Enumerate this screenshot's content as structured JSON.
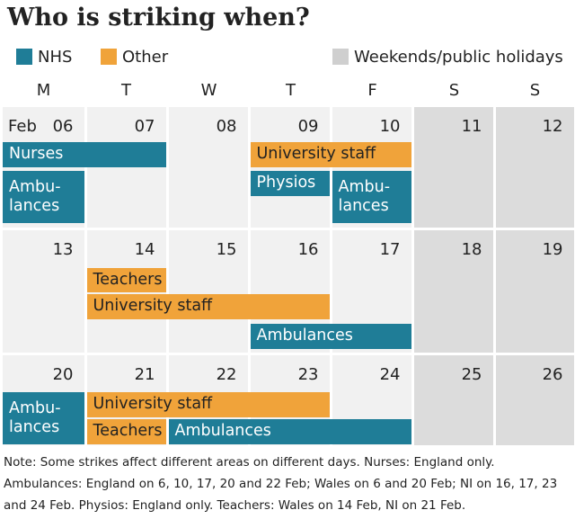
{
  "title": "Who is striking when?",
  "legend": [
    {
      "label": "NHS",
      "color": "#1f7d97"
    },
    {
      "label": "Other",
      "color": "#f0a33a"
    },
    {
      "label": "Weekends/public holidays",
      "color": "#cfcfcf"
    }
  ],
  "days": [
    "M",
    "T",
    "W",
    "T",
    "F",
    "S",
    "S"
  ],
  "month_label": "Feb",
  "colors": {
    "nhs": "#1f7d97",
    "other": "#f0a33a",
    "weekend_bg": "#dcdcdc",
    "weekday_bg": "#f1f1f1",
    "gridline": "#ffffff"
  },
  "chart_data": {
    "type": "table",
    "weeks": [
      {
        "dates": [
          "06",
          "07",
          "08",
          "09",
          "10",
          "11",
          "12"
        ]
      },
      {
        "dates": [
          "13",
          "14",
          "15",
          "16",
          "17",
          "18",
          "19"
        ]
      },
      {
        "dates": [
          "20",
          "21",
          "22",
          "23",
          "24",
          "25",
          "26"
        ]
      }
    ],
    "strikes": [
      {
        "label": "Nurses",
        "group": "NHS",
        "week": 1,
        "start_day": 1,
        "end_day": 2
      },
      {
        "label": "Ambu-\nlances",
        "group": "NHS",
        "week": 1,
        "start_day": 1,
        "end_day": 1
      },
      {
        "label": "University staff",
        "group": "Other",
        "week": 1,
        "start_day": 4,
        "end_day": 5
      },
      {
        "label": "Physios",
        "group": "NHS",
        "week": 1,
        "start_day": 4,
        "end_day": 4
      },
      {
        "label": "Ambu-\nlances",
        "group": "NHS",
        "week": 1,
        "start_day": 5,
        "end_day": 5
      },
      {
        "label": "Teachers",
        "group": "Other",
        "week": 2,
        "start_day": 2,
        "end_day": 2
      },
      {
        "label": "University staff",
        "group": "Other",
        "week": 2,
        "start_day": 2,
        "end_day": 4
      },
      {
        "label": "Ambulances",
        "group": "NHS",
        "week": 2,
        "start_day": 4,
        "end_day": 5
      },
      {
        "label": "Ambu-\nlances",
        "group": "NHS",
        "week": 3,
        "start_day": 1,
        "end_day": 1
      },
      {
        "label": "University staff",
        "group": "Other",
        "week": 3,
        "start_day": 2,
        "end_day": 4
      },
      {
        "label": "Teachers",
        "group": "Other",
        "week": 3,
        "start_day": 2,
        "end_day": 2
      },
      {
        "label": "Ambulances",
        "group": "NHS",
        "week": 3,
        "start_day": 3,
        "end_day": 5
      }
    ]
  },
  "note": "Note: Some strikes affect different areas on different days. Nurses: England only. Ambulances: England on 6, 10, 17, 20 and 22 Feb; Wales on 6 and 20 Feb; NI on 16, 17, 23 and 24 Feb. Physios: England only. Teachers: Wales on 14 Feb, NI on 21 Feb."
}
